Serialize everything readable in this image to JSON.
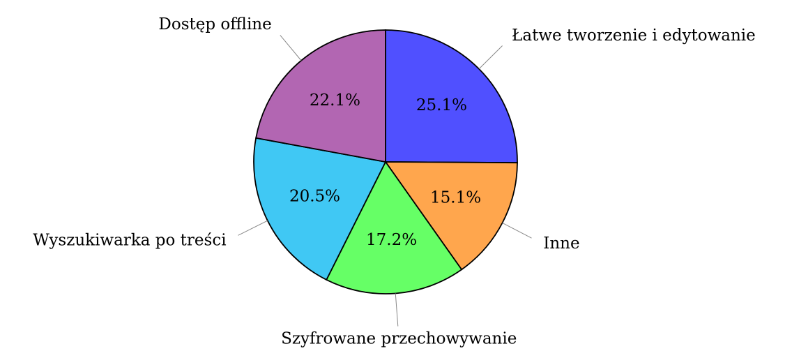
{
  "chart_data": {
    "type": "pie",
    "categories": [
      "Łatwe tworzenie i edytowanie",
      "Inne",
      "Szyfrowane przechowywanie",
      "Wyszukiwarka po treści",
      "Dostęp offline"
    ],
    "values": [
      25.1,
      15.1,
      17.2,
      20.5,
      22.1
    ],
    "value_labels": [
      "25.1%",
      "15.1%",
      "17.2%",
      "20.5%",
      "22.1%"
    ],
    "colors": [
      "#5050ff",
      "#ffa64d",
      "#66ff66",
      "#40c8f4",
      "#b266b2"
    ]
  }
}
